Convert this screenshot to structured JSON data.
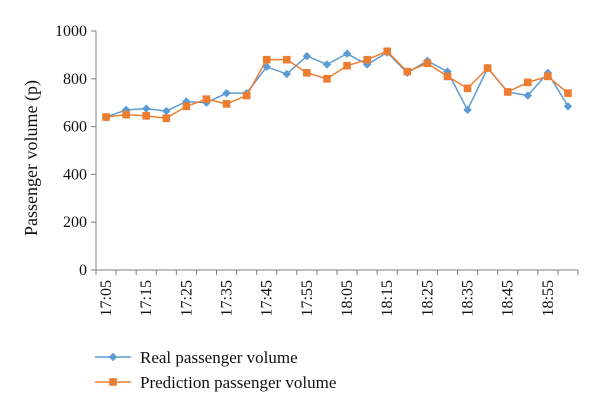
{
  "chart_data": {
    "type": "line",
    "title": "",
    "xlabel": "",
    "ylabel": "Passenger volume (p)",
    "ylim": [
      0,
      1000
    ],
    "yticks": [
      "0",
      "200",
      "400",
      "600",
      "800",
      "1000"
    ],
    "grid": false,
    "legend_position": "bottom",
    "x": [
      "17:05",
      "17:10",
      "17:15",
      "17:20",
      "17:25",
      "17:30",
      "17:35",
      "17:40",
      "17:45",
      "17:50",
      "17:55",
      "18:00",
      "18:05",
      "18:10",
      "18:15",
      "18:20",
      "18:25",
      "18:30",
      "18:35",
      "18:40",
      "18:45",
      "18:50",
      "18:55",
      "19:00"
    ],
    "xtick_labels": [
      "17:05",
      "17:15",
      "17:25",
      "17:35",
      "17:45",
      "17:55",
      "18:05",
      "18:15",
      "18:25",
      "18:35",
      "18:45",
      "18:55"
    ],
    "series": [
      {
        "name": "Real passenger volume",
        "color": "#5B9BD5",
        "marker": "diamond",
        "values": [
          640,
          670,
          675,
          665,
          705,
          700,
          740,
          740,
          850,
          820,
          895,
          860,
          905,
          860,
          910,
          825,
          875,
          830,
          670,
          845,
          745,
          730,
          825,
          685
        ]
      },
      {
        "name": "Prediction passenger volume",
        "color": "#ED7D31",
        "marker": "square",
        "values": [
          640,
          650,
          645,
          635,
          685,
          715,
          695,
          730,
          880,
          880,
          825,
          800,
          855,
          880,
          915,
          830,
          865,
          810,
          760,
          845,
          745,
          785,
          810,
          740
        ]
      }
    ]
  }
}
